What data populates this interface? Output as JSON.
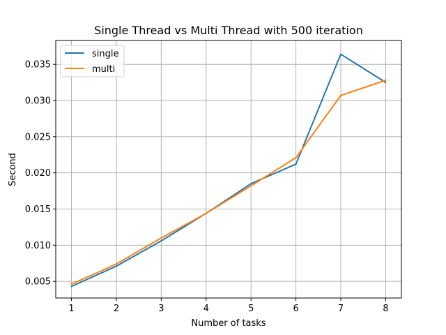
{
  "chart_data": {
    "type": "line",
    "title": "Single Thread vs Multi Thread with 500 iteration",
    "xlabel": "Number of tasks",
    "ylabel": "Second",
    "x": [
      1,
      2,
      3,
      4,
      5,
      6,
      7,
      8
    ],
    "xticks": [
      "1",
      "2",
      "3",
      "4",
      "5",
      "6",
      "7",
      "8"
    ],
    "yticks": [
      "0.005",
      "0.010",
      "0.015",
      "0.020",
      "0.025",
      "0.030",
      "0.035"
    ],
    "ytick_values": [
      0.005,
      0.01,
      0.015,
      0.02,
      0.025,
      0.03,
      0.035
    ],
    "xlim": [
      0.65,
      8.35
    ],
    "ylim": [
      0.0027,
      0.0383
    ],
    "grid": true,
    "legend_position": "top-left",
    "series": [
      {
        "name": "single",
        "color": "#1f77b4",
        "values": [
          0.0043,
          0.0071,
          0.0106,
          0.0144,
          0.0185,
          0.0212,
          0.0364,
          0.0325
        ]
      },
      {
        "name": "multi",
        "color": "#ff7f0e",
        "values": [
          0.0046,
          0.0074,
          0.011,
          0.0144,
          0.0182,
          0.0221,
          0.0307,
          0.0328
        ]
      }
    ]
  }
}
